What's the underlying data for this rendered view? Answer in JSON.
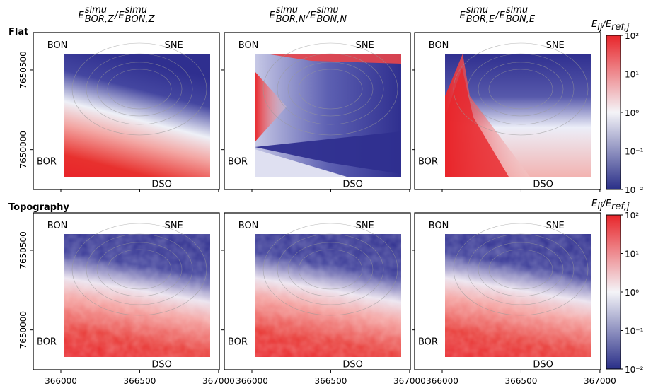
{
  "column_titles": [
    {
      "num": {
        "sym": "E",
        "sup": "simu",
        "sub": "BOR,Z"
      },
      "sep": "/",
      "den": {
        "sym": "E",
        "sup": "simu",
        "sub": "BON,Z"
      }
    },
    {
      "num": {
        "sym": "E",
        "sup": "simu",
        "sub": "BOR,N"
      },
      "sep": "/",
      "den": {
        "sym": "E",
        "sup": "simu",
        "sub": "BON,N"
      }
    },
    {
      "num": {
        "sym": "E",
        "sup": "simu",
        "sub": "BOR,E"
      },
      "sep": "/",
      "den": {
        "sym": "E",
        "sup": "simu",
        "sub": "BON,E"
      }
    }
  ],
  "row_labels": [
    "Flat",
    "Topography"
  ],
  "xlim": [
    365825,
    367005
  ],
  "ylim": [
    7649750,
    7650735
  ],
  "xticks": [
    366000,
    366500,
    367000
  ],
  "yticks": [
    7650000,
    7650500
  ],
  "stations": [
    {
      "label": "BON",
      "x": 366126,
      "y": 7650593,
      "color": "#2ca02c"
    },
    {
      "label": "SNE",
      "x": 366829,
      "y": 7650655,
      "color": "#7f7f7f"
    },
    {
      "label": "BOR",
      "x": 365937,
      "y": 7650013,
      "color": "#2ca02c"
    },
    {
      "label": "DSO",
      "x": 366522,
      "y": 7649841,
      "color": "#7f7f7f"
    }
  ],
  "colorbar": {
    "label": {
      "sym": "E",
      "sub": "ij",
      "sep": "/",
      "sym2": "E",
      "sub2": "ref,j"
    },
    "log": true,
    "lim": [
      0.01,
      100
    ],
    "ticks": [
      {
        "value": 0.01,
        "label": "10⁻²"
      },
      {
        "value": 0.1,
        "label": "10⁻¹"
      },
      {
        "value": 1,
        "label": "10⁰"
      },
      {
        "value": 10,
        "label": "10¹"
      },
      {
        "value": 100,
        "label": "10²"
      }
    ]
  }
}
